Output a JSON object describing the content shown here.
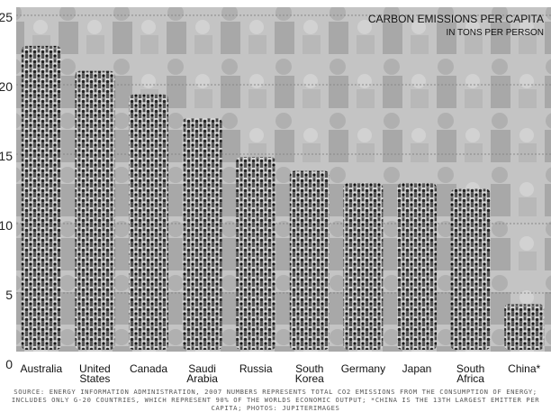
{
  "chart_data": {
    "type": "bar",
    "title": "CARBON EMISSIONS PER CAPITA",
    "subtitle": "IN TONS PER PERSON",
    "categories": [
      "Australia",
      "United States",
      "Canada",
      "Saudi Arabia",
      "Russia",
      "South Korea",
      "Germany",
      "Japan",
      "South Africa",
      "China*"
    ],
    "category_lines": [
      [
        "Australia"
      ],
      [
        "United",
        "States"
      ],
      [
        "Canada"
      ],
      [
        "Saudi",
        "Arabia"
      ],
      [
        "Russia"
      ],
      [
        "South",
        "Korea"
      ],
      [
        "Germany"
      ],
      [
        "Japan"
      ],
      [
        "South",
        "Africa"
      ],
      [
        "China*"
      ]
    ],
    "values": [
      22.8,
      21.0,
      19.3,
      17.6,
      14.8,
      13.8,
      12.9,
      12.9,
      12.5,
      4.2
    ],
    "ylim": [
      0,
      25
    ],
    "yticks": [
      0,
      5,
      10,
      15,
      20,
      25
    ],
    "ytick_labels": [
      "0",
      "5",
      "10",
      "15",
      "20",
      "25"
    ],
    "grid": true,
    "xlabel": "",
    "ylabel": ""
  },
  "source_note": "SOURCE: ENERGY INFORMATION ADMINISTRATION, 2007 NUMBERS REPRESENTS TOTAL CO2 EMISSIONS FROM THE CONSUMPTION OF ENERGY; INCLUDES ONLY G-20 COUNTRIES, WHICH REPRESENT 90% OF THE WORLDS ECONOMIC OUTPUT; *CHINA IS THE 13TH LARGEST EMITTER PER CAPITA; PHOTOS: JUPITERIMAGES"
}
